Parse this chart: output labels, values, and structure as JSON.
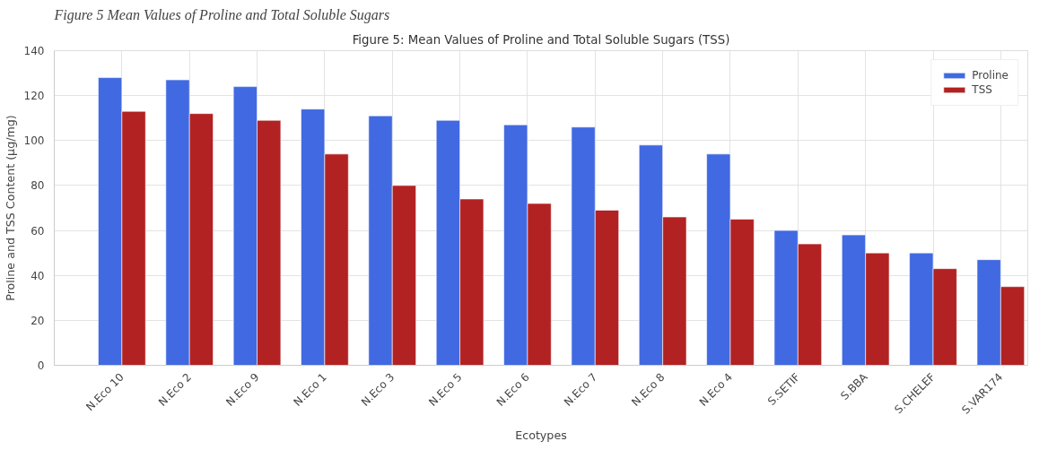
{
  "chart_data": {
    "type": "bar",
    "title": "Figure 5: Mean Values of Proline and Total Soluble Sugars (TSS)",
    "annotations": [
      "Figure 5 Mean Values of Proline and Total Soluble Sugars"
    ],
    "xlabel": "Ecotypes",
    "ylabel": "Proline and TSS Content (µg/mg)",
    "categories": [
      "N.Eco 10",
      "N.Eco 2",
      "N.Eco 9",
      "N.Eco 1",
      "N.Eco 3",
      "N.Eco 5",
      "N.Eco 6",
      "N.Eco 7",
      "N.Eco 8",
      "N.Eco 4",
      "S.SETIF",
      "S.BBA",
      "S.CHELEF",
      "S.VAR174"
    ],
    "series": [
      {
        "name": "Proline",
        "color": "#4169e1",
        "values": [
          128,
          127,
          124,
          114,
          111,
          109,
          107,
          106,
          98,
          94,
          60,
          58,
          50,
          47
        ]
      },
      {
        "name": "TSS",
        "color": "#b22222",
        "values": [
          113,
          112,
          109,
          94,
          80,
          74,
          72,
          69,
          66,
          65,
          54,
          50,
          43,
          35
        ]
      }
    ],
    "ylim": [
      0,
      140
    ],
    "yticks": [
      0,
      20,
      40,
      60,
      80,
      100,
      120,
      140
    ],
    "grid": true,
    "legend": "top right"
  }
}
